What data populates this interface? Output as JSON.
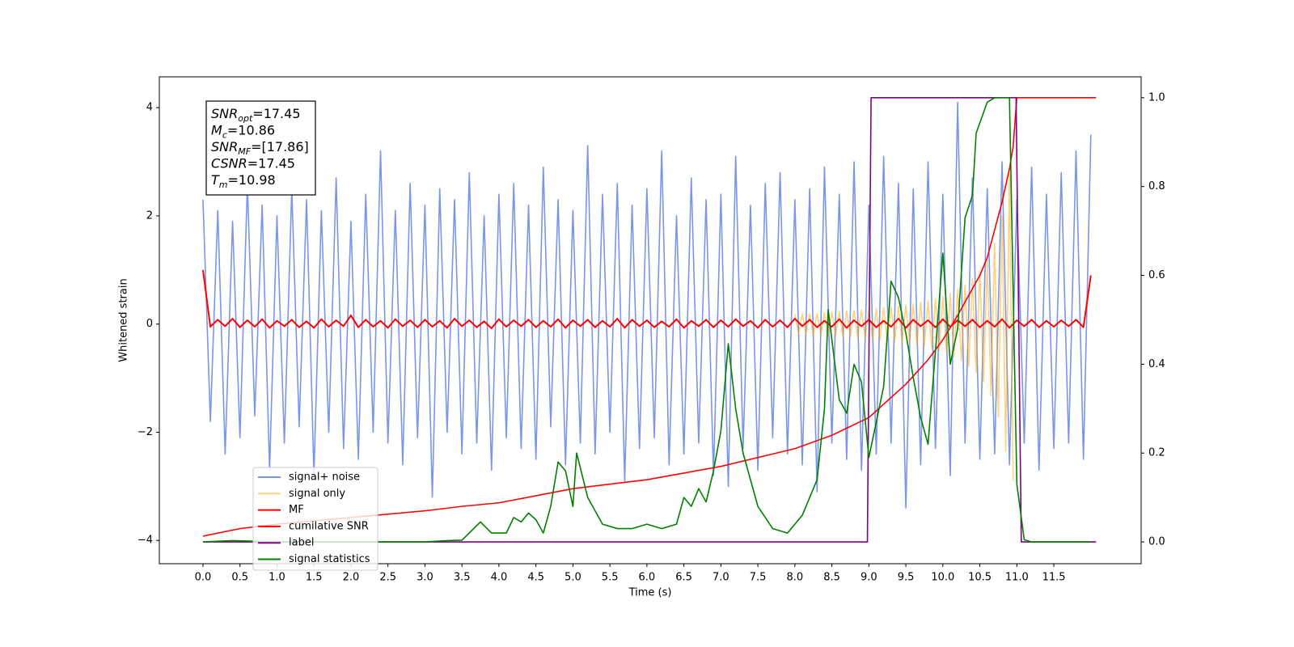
{
  "chart_data": {
    "type": "line",
    "xlabel": "Time (s)",
    "ylabel": "Whitened strain",
    "annotation": [
      {
        "symbol": "SNR",
        "subscript": "opt",
        "text": "=17.45"
      },
      {
        "symbol": "M",
        "subscript": "c",
        "text": "=10.86"
      },
      {
        "symbol": "SNR",
        "subscript": "MF",
        "text": "=[17.86]"
      },
      {
        "symbol": "CSNR",
        "text": "=17.45"
      },
      {
        "symbol": "T",
        "subscript": "m",
        "text": "=10.98"
      }
    ],
    "xlim": [
      -0.59,
      12.68
    ],
    "ylim": [
      -4.43,
      4.57
    ],
    "y2lim": [
      -0.049,
      1.047
    ],
    "xticks": [
      {
        "value": 0,
        "label": "0.0"
      },
      0.5,
      {
        "value": 1,
        "label": "1.0"
      },
      1.5,
      {
        "value": 2,
        "label": "2.0"
      },
      2.5,
      {
        "value": 3,
        "label": "3.0"
      },
      3.5,
      {
        "value": 4,
        "label": "4.0"
      },
      4.5,
      {
        "value": 5,
        "label": "5.0"
      },
      5.5,
      {
        "value": 6,
        "label": "6.0"
      },
      6.5,
      {
        "value": 7,
        "label": "7.0"
      },
      7.5,
      {
        "value": 8,
        "label": "8.0"
      },
      8.5,
      {
        "value": 9,
        "label": "9.0"
      },
      9.5,
      {
        "value": 10,
        "label": "10.0"
      },
      10.5,
      {
        "value": 11,
        "label": "11.0"
      },
      11.5
    ],
    "yticks": [
      {
        "value": -4,
        "label": "−4"
      },
      {
        "value": -2,
        "label": "−2"
      },
      0,
      2,
      4
    ],
    "y2ticks": [
      {
        "value": 0,
        "label": "0.0"
      },
      0.2,
      0.4,
      0.6,
      0.8,
      {
        "value": 1,
        "label": "1.0"
      }
    ],
    "grid": false,
    "legend": "lower left",
    "x": [
      0.0,
      0.1,
      0.2,
      0.3,
      0.4,
      0.5,
      0.6,
      0.7,
      0.8,
      0.9,
      1.0,
      1.1,
      1.2,
      1.3,
      1.4,
      1.5,
      1.6,
      1.7,
      1.8,
      1.9,
      2.0,
      2.1,
      2.2,
      2.3,
      2.4,
      2.5,
      2.6,
      2.7,
      2.8,
      2.9,
      3.0,
      3.1,
      3.2,
      3.3,
      3.4,
      3.5,
      3.6,
      3.7,
      3.8,
      3.9,
      4.0,
      4.1,
      4.2,
      4.3,
      4.4,
      4.5,
      4.6,
      4.7,
      4.8,
      4.9,
      5.0,
      5.1,
      5.2,
      5.3,
      5.4,
      5.5,
      5.6,
      5.7,
      5.8,
      5.9,
      6.0,
      6.1,
      6.2,
      6.3,
      6.4,
      6.5,
      6.6,
      6.7,
      6.8,
      6.9,
      7.0,
      7.1,
      7.2,
      7.3,
      7.4,
      7.5,
      7.6,
      7.7,
      7.8,
      7.9,
      8.0,
      8.1,
      8.2,
      8.3,
      8.4,
      8.5,
      8.6,
      8.7,
      8.8,
      8.9,
      9.0,
      9.1,
      9.2,
      9.3,
      9.4,
      9.5,
      9.6,
      9.7,
      9.8,
      9.9,
      10.0,
      10.1,
      10.2,
      10.3,
      10.4,
      10.5,
      10.6,
      10.7,
      10.8,
      10.9,
      11.0,
      11.1,
      11.2,
      11.3,
      11.4,
      11.5,
      11.6,
      11.7,
      11.8,
      11.9,
      12.0
    ],
    "series": [
      {
        "name": "signal+ noise",
        "color": "#4169e1",
        "alpha": 0.7,
        "values": [
          2.3,
          -1.8,
          2.1,
          -2.4,
          1.9,
          -2.1,
          2.6,
          -1.7,
          2.2,
          -2.7,
          2.0,
          -2.2,
          2.5,
          -1.9,
          2.3,
          -2.8,
          2.1,
          -2.0,
          2.7,
          -2.3,
          1.9,
          -2.5,
          2.4,
          -2.0,
          3.2,
          -2.2,
          2.1,
          -2.6,
          2.6,
          -2.1,
          2.2,
          -3.2,
          2.5,
          -2.0,
          2.3,
          -2.4,
          2.8,
          -2.2,
          2.0,
          -2.7,
          2.4,
          -2.1,
          2.6,
          -2.3,
          2.2,
          -2.5,
          2.9,
          -1.9,
          2.3,
          -2.6,
          2.1,
          -2.2,
          3.3,
          -2.4,
          2.4,
          -2.0,
          2.6,
          -2.9,
          2.2,
          -2.3,
          2.5,
          -2.1,
          3.2,
          -2.6,
          2.0,
          -2.4,
          2.7,
          -2.2,
          2.3,
          -2.8,
          2.4,
          -3.0,
          3.1,
          -2.3,
          2.2,
          -2.7,
          2.6,
          -2.1,
          2.8,
          -2.4,
          2.3,
          -2.6,
          2.5,
          -3.1,
          2.9,
          -2.2,
          2.4,
          -2.5,
          3.0,
          -2.7,
          2.2,
          -2.4,
          3.1,
          -2.2,
          2.6,
          -3.4,
          2.5,
          -2.6,
          3.0,
          -2.3,
          2.4,
          -2.8,
          4.1,
          -2.2,
          2.7,
          -2.5,
          2.5,
          -2.4,
          3.0,
          -2.6,
          2.3,
          -2.2,
          2.9,
          -2.7,
          2.4,
          -2.3,
          2.8,
          -2.2,
          3.2,
          -2.5,
          3.5
        ]
      },
      {
        "name": "signal only",
        "color": "#ffa500",
        "alpha": 0.5,
        "x": [
          8.0,
          8.05,
          8.1,
          8.15,
          8.2,
          8.25,
          8.3,
          8.35,
          8.4,
          8.45,
          8.5,
          8.55,
          8.6,
          8.65,
          8.7,
          8.75,
          8.8,
          8.85,
          8.9,
          8.95,
          9.0,
          9.05,
          9.1,
          9.15,
          9.2,
          9.25,
          9.3,
          9.35,
          9.4,
          9.45,
          9.5,
          9.55,
          9.6,
          9.65,
          9.7,
          9.75,
          9.8,
          9.85,
          9.9,
          9.95,
          10.0,
          10.05,
          10.1,
          10.15,
          10.2,
          10.25,
          10.3,
          10.35,
          10.4,
          10.45,
          10.5,
          10.55,
          10.6,
          10.65,
          10.7,
          10.75,
          10.8,
          10.85,
          10.9,
          10.95
        ],
        "values": [
          0.18,
          -0.18,
          0.19,
          -0.19,
          0.19,
          -0.2,
          0.2,
          -0.2,
          0.21,
          -0.21,
          0.22,
          -0.22,
          0.23,
          -0.23,
          0.24,
          -0.24,
          0.25,
          -0.25,
          0.26,
          -0.26,
          0.27,
          -0.28,
          0.28,
          -0.29,
          0.3,
          -0.3,
          0.31,
          -0.32,
          0.33,
          -0.34,
          0.35,
          -0.36,
          0.37,
          -0.38,
          0.4,
          -0.41,
          0.43,
          -0.45,
          0.47,
          -0.49,
          0.51,
          -0.54,
          0.57,
          -0.6,
          0.64,
          -0.68,
          0.72,
          -0.78,
          0.84,
          -0.9,
          0.98,
          -1.07,
          1.18,
          -1.32,
          1.5,
          -1.72,
          2.0,
          -2.35,
          2.8,
          -2.9
        ]
      },
      {
        "name": "MF",
        "color": "#ff0000",
        "alpha": 1,
        "values": [
          1.0,
          -0.05,
          0.08,
          -0.04,
          0.1,
          -0.06,
          0.07,
          -0.05,
          0.09,
          -0.07,
          0.06,
          -0.04,
          0.08,
          -0.06,
          0.05,
          -0.07,
          0.09,
          -0.05,
          0.07,
          -0.04,
          0.16,
          -0.06,
          0.08,
          -0.05,
          0.06,
          -0.07,
          0.09,
          -0.04,
          0.07,
          -0.06,
          0.08,
          -0.05,
          0.06,
          -0.07,
          0.1,
          -0.04,
          0.07,
          -0.06,
          0.05,
          -0.08,
          0.09,
          -0.05,
          0.07,
          -0.04,
          0.08,
          -0.06,
          0.06,
          -0.05,
          0.09,
          -0.07,
          0.07,
          -0.04,
          0.08,
          -0.06,
          0.06,
          -0.05,
          0.1,
          -0.07,
          0.08,
          -0.04,
          0.07,
          -0.06,
          0.05,
          -0.05,
          0.09,
          -0.07,
          0.06,
          -0.04,
          0.08,
          -0.06,
          0.07,
          -0.05,
          0.09,
          -0.04,
          0.06,
          -0.07,
          0.08,
          -0.05,
          0.07,
          -0.06,
          0.1,
          -0.04,
          0.08,
          -0.06,
          0.06,
          -0.05,
          0.09,
          -0.07,
          0.07,
          -0.04,
          0.08,
          -0.06,
          0.06,
          -0.05,
          0.1,
          -0.07,
          0.08,
          -0.04,
          0.07,
          -0.06,
          0.09,
          -0.05,
          0.07,
          -0.04,
          0.08,
          -0.06,
          0.06,
          -0.05,
          0.09,
          -0.07,
          0.07,
          -0.04,
          0.08,
          -0.06,
          0.06,
          -0.05,
          0.07,
          -0.04,
          0.08,
          -0.06,
          0.9
        ]
      },
      {
        "name": "cumilative SNR",
        "color": "#ff0000",
        "alpha": 1,
        "axis": "y2",
        "x": [
          0,
          0.5,
          1,
          2,
          3,
          3.5,
          4,
          5,
          6,
          7,
          8,
          8.5,
          9,
          9.5,
          9.8,
          10,
          10.2,
          10.4,
          10.5,
          10.6,
          10.8,
          10.9,
          10.95,
          11.0,
          12.07
        ],
        "values": [
          0.013,
          0.03,
          0.04,
          0.055,
          0.07,
          0.08,
          0.088,
          0.12,
          0.14,
          0.17,
          0.21,
          0.24,
          0.28,
          0.355,
          0.41,
          0.455,
          0.51,
          0.57,
          0.6,
          0.64,
          0.765,
          0.84,
          0.89,
          1.0,
          1.0
        ]
      },
      {
        "name": "label",
        "color": "#800080",
        "alpha": 1,
        "axis": "y2",
        "x": [
          0,
          8.98,
          9.03,
          10.99,
          11.06,
          12.07
        ],
        "values": [
          0,
          0,
          1,
          1,
          0,
          0
        ]
      },
      {
        "name": "signal statistics",
        "color": "#008000",
        "alpha": 1,
        "axis": "y2",
        "x": [
          0,
          0.4,
          1,
          2,
          3,
          3.3,
          3.5,
          3.75,
          3.9,
          4.1,
          4.2,
          4.3,
          4.4,
          4.5,
          4.6,
          4.7,
          4.8,
          4.9,
          5.0,
          5.05,
          5.2,
          5.4,
          5.6,
          5.8,
          6.0,
          6.2,
          6.4,
          6.5,
          6.6,
          6.7,
          6.8,
          6.9,
          7.0,
          7.1,
          7.2,
          7.3,
          7.5,
          7.7,
          7.9,
          8.1,
          8.3,
          8.4,
          8.45,
          8.6,
          8.7,
          8.8,
          8.9,
          9.0,
          9.1,
          9.2,
          9.3,
          9.4,
          9.5,
          9.6,
          9.7,
          9.8,
          9.9,
          10.0,
          10.1,
          10.2,
          10.3,
          10.4,
          10.45,
          10.6,
          10.7,
          10.9,
          11.0,
          11.1,
          11.2,
          12.0
        ],
        "values": [
          0,
          0.003,
          0,
          0,
          0,
          0.003,
          0.004,
          0.045,
          0.02,
          0.02,
          0.055,
          0.045,
          0.065,
          0.05,
          0.02,
          0.08,
          0.18,
          0.16,
          0.08,
          0.2,
          0.1,
          0.04,
          0.03,
          0.03,
          0.04,
          0.03,
          0.04,
          0.1,
          0.08,
          0.12,
          0.09,
          0.16,
          0.25,
          0.446,
          0.3,
          0.2,
          0.08,
          0.03,
          0.02,
          0.06,
          0.14,
          0.3,
          0.523,
          0.32,
          0.29,
          0.4,
          0.36,
          0.19,
          0.27,
          0.35,
          0.587,
          0.55,
          0.47,
          0.37,
          0.28,
          0.22,
          0.43,
          0.65,
          0.4,
          0.48,
          0.73,
          0.78,
          0.92,
          0.99,
          1.0,
          1.0,
          0.13,
          0.005,
          0,
          0
        ]
      }
    ]
  }
}
